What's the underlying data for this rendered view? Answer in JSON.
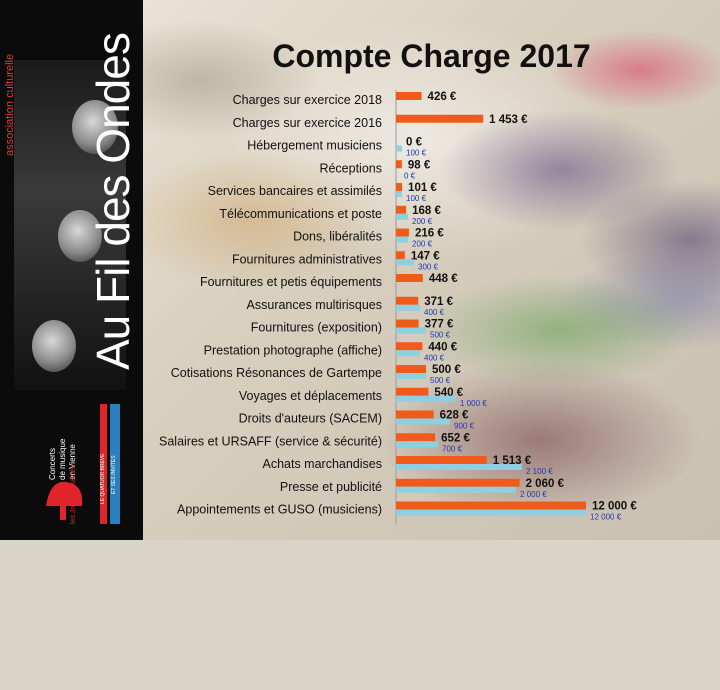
{
  "title": "Compte Charge 2017",
  "sidebar": {
    "association": "association culturelle",
    "brand": "Au Fil des Ondes",
    "logo_lines": [
      "Concerts",
      "de musique",
      "en Vienne"
    ],
    "logo_script": "les Joyeux Cuivrés",
    "stripe_red_text": "LE QUATUOR BREVE",
    "stripe_blue_text": "ET SES INVITÉS"
  },
  "colors": {
    "series_2017": "#f05a1a",
    "series_2016": "#8ecfe0",
    "label_2016": "#1d39b5"
  },
  "chart_data": {
    "type": "bar",
    "orientation": "horizontal",
    "title": "Compte Charge 2017",
    "categories": [
      "Charges sur exercice 2018",
      "Charges sur exercice 2016",
      "Hébergement musiciens",
      "Réceptions",
      "Services bancaires et assimilés",
      "Télécommunications et poste",
      "Dons, libéralités",
      "Fournitures administratives",
      "Fournitures et petis équipements",
      "Assurances multirisques",
      "Fournitures (exposition)",
      "Prestation photographe (affiche)",
      "Cotisations Résonances de Gartempe",
      "Voyages et déplacements",
      "Droits d'auteurs (SACEM)",
      "Salaires et URSAFF (service & sécurité)",
      "Achats marchandises",
      "Presse et publicité",
      "Appointements et GUSO (musiciens)"
    ],
    "series": [
      {
        "values": [
          426,
          1453,
          0,
          98,
          101,
          168,
          216,
          147,
          448,
          371,
          377,
          440,
          500,
          540,
          628,
          652,
          1513,
          2060,
          12000
        ],
        "labels": [
          "426 €",
          "1 453 €",
          "0 €",
          "98 €",
          "101 €",
          "168 €",
          "216 €",
          "147 €",
          "448 €",
          "371 €",
          "377 €",
          "440 €",
          "500 €",
          "540 €",
          "628 €",
          "652 €",
          "1 513 €",
          "2 060 €",
          "12 000 €"
        ]
      },
      {
        "values": [
          null,
          null,
          100,
          0,
          100,
          200,
          200,
          300,
          null,
          400,
          500,
          400,
          500,
          1000,
          900,
          700,
          2100,
          2000,
          12000
        ],
        "labels": [
          "",
          "",
          "100 €",
          "0 €",
          "100 €",
          "200 €",
          "200 €",
          "300 €",
          "",
          "400 €",
          "500 €",
          "400 €",
          "500 €",
          "1 000 €",
          "900 €",
          "700 €",
          "2 100 €",
          "2 000 €",
          "12 000 €"
        ]
      }
    ],
    "axis_break": true,
    "grid": false,
    "legend": "none"
  }
}
